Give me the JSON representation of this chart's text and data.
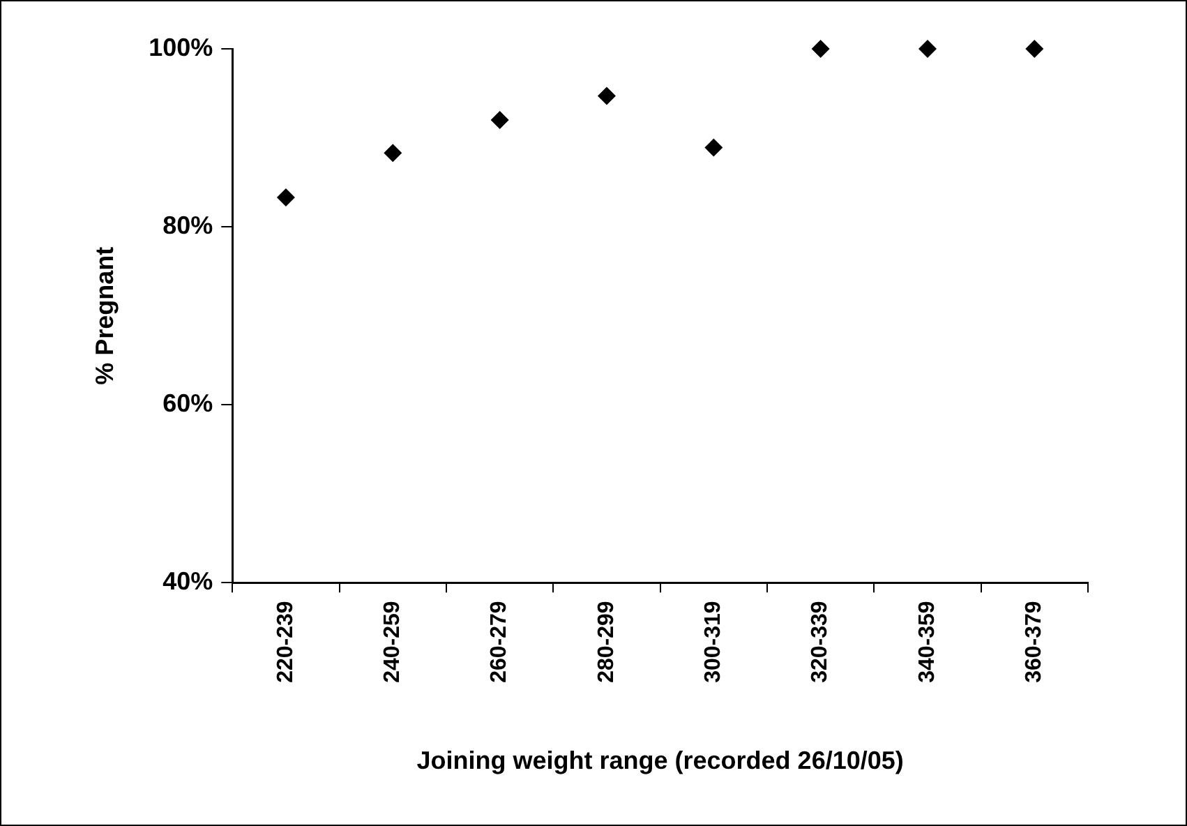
{
  "chart_data": {
    "type": "scatter",
    "xlabel": "Joining weight range (recorded 26/10/05)",
    "ylabel": "% Pregnant",
    "categories": [
      "220-239",
      "240-259",
      "260-279",
      "280-299",
      "300-319",
      "320-339",
      "340-359",
      "360-379"
    ],
    "series": [
      {
        "color": "#000000",
        "values": [
          83.3,
          88.3,
          92.0,
          94.7,
          88.9,
          100,
          100,
          100
        ]
      }
    ],
    "ylim": [
      40,
      100
    ],
    "yticks": [
      {
        "value": 40,
        "label": "40%"
      },
      {
        "value": 60,
        "label": "60%"
      },
      {
        "value": 80,
        "label": "80%"
      },
      {
        "value": 100,
        "label": "100%"
      }
    ],
    "marker": "diamond",
    "grid": false,
    "legend": false
  }
}
